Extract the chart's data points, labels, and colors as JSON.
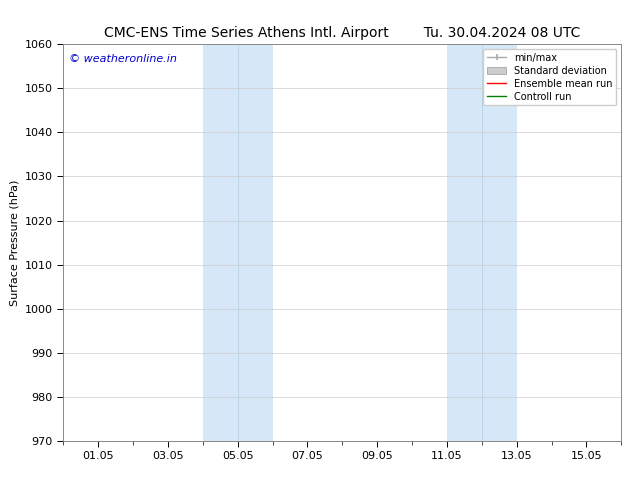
{
  "title_left": "CMC-ENS Time Series Athens Intl. Airport",
  "title_right": "Tu. 30.04.2024 08 UTC",
  "ylabel": "Surface Pressure (hPa)",
  "ylim": [
    970,
    1060
  ],
  "yticks": [
    970,
    980,
    990,
    1000,
    1010,
    1020,
    1030,
    1040,
    1050,
    1060
  ],
  "xtick_labels": [
    "01.05",
    "03.05",
    "05.05",
    "07.05",
    "09.05",
    "11.05",
    "13.05",
    "15.05"
  ],
  "xtick_days": [
    1,
    3,
    5,
    7,
    9,
    11,
    13,
    15
  ],
  "xstart_day": 30,
  "xstart_month": 4,
  "xend_day": 16,
  "xend_month": 5,
  "shaded_bands": [
    {
      "start_day": 4,
      "end_day": 6
    },
    {
      "start_day": 11,
      "end_day": 13
    }
  ],
  "shade_color": "#d6e8f7",
  "band_divider_color": "#b0cce0",
  "watermark_text": "© weatheronline.in",
  "watermark_color": "#0000cc",
  "watermark_fontsize": 8,
  "legend_entries": [
    {
      "label": "min/max",
      "color": "#aaaaaa",
      "linestyle": "-",
      "linewidth": 1.0
    },
    {
      "label": "Standard deviation",
      "color": "#cccccc",
      "linestyle": "-",
      "linewidth": 5
    },
    {
      "label": "Ensemble mean run",
      "color": "red",
      "linestyle": "-",
      "linewidth": 1.0
    },
    {
      "label": "Controll run",
      "color": "green",
      "linestyle": "-",
      "linewidth": 1.0
    }
  ],
  "title_fontsize": 10,
  "axis_fontsize": 8,
  "tick_fontsize": 8,
  "background_color": "#ffffff",
  "grid_color": "#cccccc",
  "grid_linewidth": 0.5
}
